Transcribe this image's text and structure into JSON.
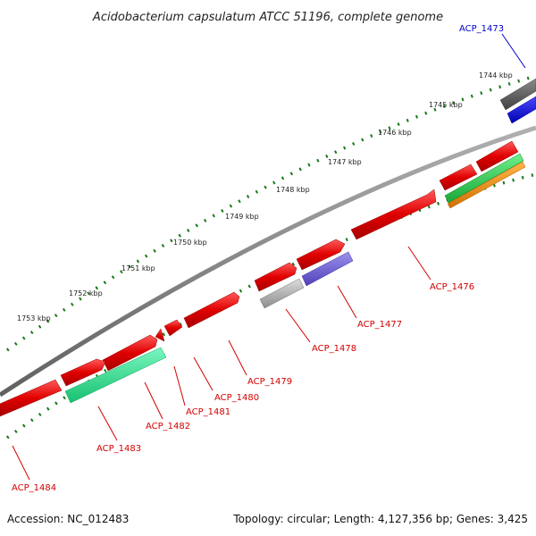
{
  "title": "Acidobacterium capsulatum ATCC 51196, complete genome",
  "accession": "Accession: NC_012483",
  "topology": "Topology: circular; Length: 4,127,356 bp; Genes: 3,425",
  "kbp_labels": [
    "1744 kbp",
    "1745 kbp",
    "1746 kbp",
    "1747 kbp",
    "1748 kbp",
    "1749 kbp",
    "1750 kbp",
    "1751 kbp",
    "1752 kbp",
    "1753 kbp"
  ],
  "colors": {
    "backbone": "#808080",
    "tick": "#1a7a1a",
    "gene_red": "#e8000b",
    "label_red": "#d40000",
    "label_blue": "#0000cc",
    "gray_feature": "#a8a8a8",
    "dark_gray_feature": "#606060",
    "blue_feature": "#1010e0",
    "purple_feature": "#6a60d0",
    "green_feature": "#30d060",
    "teal_feature": "#30e090",
    "orange_feature": "#f09010"
  },
  "gene_labels": [
    "ACP_1473",
    "ACP_1476",
    "ACP_1477",
    "ACP_1478",
    "ACP_1479",
    "ACP_1480",
    "ACP_1481",
    "ACP_1482",
    "ACP_1483",
    "ACP_1484"
  ]
}
